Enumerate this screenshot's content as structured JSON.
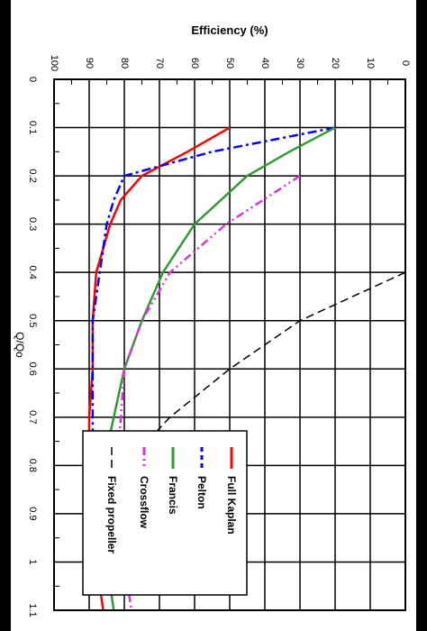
{
  "chart_data": {
    "type": "line",
    "title": "",
    "xlabel": "Q/Qo",
    "ylabel": "Efficiency (%)",
    "xlim": [
      0,
      1.1
    ],
    "ylim": [
      0,
      100
    ],
    "x_ticks": [
      "0",
      "0.1",
      "0.2",
      "0.3",
      "0.4",
      "0.5",
      "0.6",
      "0.7",
      "0.8",
      "0.9",
      "1",
      "1.1"
    ],
    "y_ticks": [
      "0",
      "10",
      "20",
      "30",
      "40",
      "50",
      "60",
      "70",
      "80",
      "90",
      "100"
    ],
    "grid": true,
    "legend_position": "lower-left",
    "series": [
      {
        "name": "Full Kaplan",
        "color": "#ff0000",
        "style": "solid",
        "x": [
          0.1,
          0.15,
          0.2,
          0.25,
          0.3,
          0.4,
          0.5,
          0.6,
          0.7,
          0.8,
          0.9,
          1.0,
          1.1
        ],
        "y": [
          50,
          62,
          75,
          81,
          84,
          88,
          89,
          89,
          90,
          90,
          89.5,
          88,
          86
        ]
      },
      {
        "name": "Pelton",
        "color": "#0000ff",
        "style": "dash-dot",
        "x": [
          0.1,
          0.15,
          0.18,
          0.2,
          0.25,
          0.3,
          0.4,
          0.5,
          0.6,
          0.7,
          0.8,
          0.9,
          1.0,
          1.05
        ],
        "y": [
          20,
          55,
          70,
          80,
          83,
          85,
          87,
          89,
          89,
          89,
          89,
          88,
          86,
          84
        ]
      },
      {
        "name": "Francis",
        "color": "#339933",
        "style": "solid",
        "x": [
          0.1,
          0.15,
          0.2,
          0.3,
          0.4,
          0.5,
          0.6,
          0.7,
          0.8,
          0.9,
          1.0,
          1.1
        ],
        "y": [
          20,
          33,
          45,
          60,
          69,
          75,
          80,
          83,
          86,
          86,
          85,
          83
        ]
      },
      {
        "name": "Crossflow",
        "color": "#dd33dd",
        "style": "dash-dot-dot",
        "x": [
          0.2,
          0.3,
          0.4,
          0.5,
          0.6,
          0.7,
          0.8,
          0.9,
          1.0,
          1.1
        ],
        "y": [
          30,
          51,
          67,
          75,
          80,
          81,
          82,
          82,
          80,
          78
        ]
      },
      {
        "name": "Fixed propeller",
        "color": "#000000",
        "style": "dashed",
        "x": [
          0.4,
          0.5,
          0.6,
          0.7,
          0.8,
          0.9,
          0.95
        ],
        "y": [
          0,
          30,
          50,
          67,
          80,
          87,
          90
        ]
      }
    ]
  }
}
